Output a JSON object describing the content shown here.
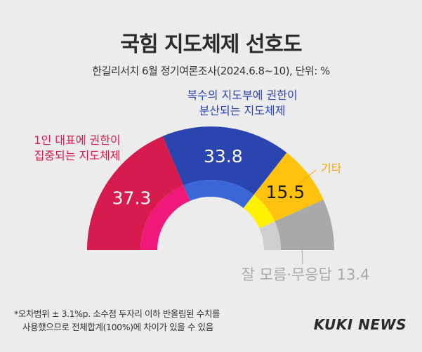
{
  "header": {
    "title": "국힘 지도체제 선호도",
    "subtitle": "한길리서치 6월 정기여론조사(2024.6.8~10), 단위: %"
  },
  "chart_data": {
    "type": "pie",
    "variant": "semicircle-donut",
    "unit": "%",
    "slices": [
      {
        "label_lines": [
          "1인 대표에 권한이",
          "집중되는 지도체제"
        ],
        "value": 37.3,
        "value_label": "37.3",
        "color": "#d81b4f",
        "inner_color": "#f0197a",
        "label_color": "#d81b4f"
      },
      {
        "label_lines": [
          "복수의 지도부에 권한이",
          "분산되는 지도체제"
        ],
        "value": 33.8,
        "value_label": "33.8",
        "color": "#2a44b0",
        "inner_color": "#3a66d8",
        "label_color": "#2a44b0"
      },
      {
        "label_lines": [
          "기타"
        ],
        "value": 15.5,
        "value_label": "15.5",
        "color": "#ffc20e",
        "inner_color": "#fff200",
        "label_color": "#f5a800"
      },
      {
        "label_lines": [
          "잘 모름·무응답 13.4"
        ],
        "value": 13.4,
        "value_label": "",
        "color": "#a9a9ab",
        "inner_color": "#cfcfd1",
        "label_color": "#a9a9ab"
      }
    ]
  },
  "footnote": {
    "line1": "*오차범위 ± 3.1%p. 소수점 두자리 이하 반올림된 수치를",
    "line2": "사용했으므로 전체합계(100%)에 차이가 있을 수 있음"
  },
  "brand": {
    "logo_text": "KUKI NEWS"
  }
}
